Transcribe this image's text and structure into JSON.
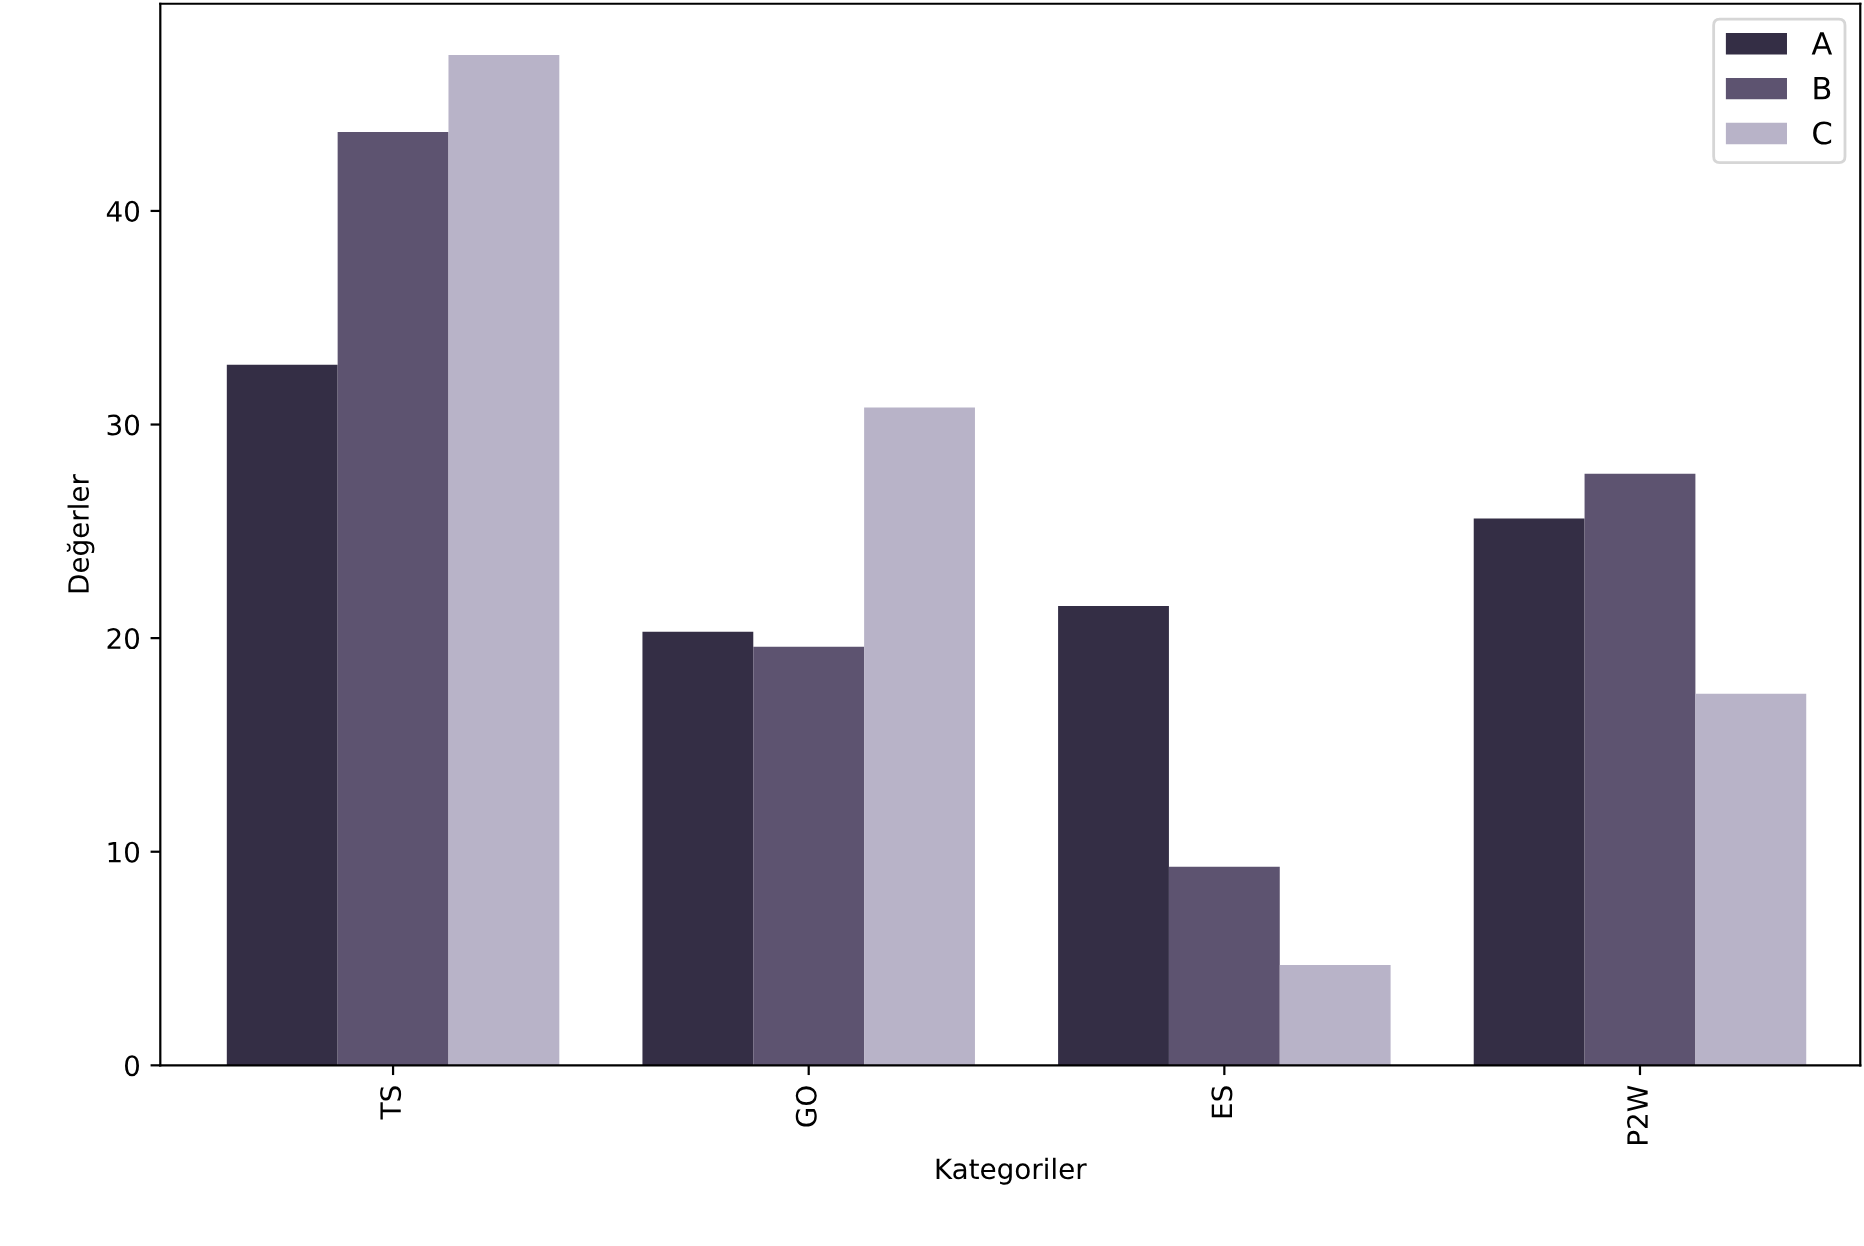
{
  "chart_data": {
    "type": "bar",
    "xlabel": "Kategoriler",
    "ylabel": "Değerler",
    "categories": [
      "TS",
      "GO",
      "ES",
      "P2W"
    ],
    "series": [
      {
        "name": "A",
        "color": "#342e45",
        "values": [
          32.8,
          20.3,
          21.5,
          25.6
        ]
      },
      {
        "name": "B",
        "color": "#5d5370",
        "values": [
          43.7,
          19.6,
          9.3,
          27.7
        ]
      },
      {
        "name": "C",
        "color": "#b8b3c8",
        "values": [
          47.3,
          30.8,
          4.7,
          17.4
        ]
      }
    ],
    "ylim": [
      0,
      49.7
    ],
    "yticks": [
      0,
      10,
      20,
      30,
      40
    ],
    "grid": false,
    "legend": "top right"
  }
}
